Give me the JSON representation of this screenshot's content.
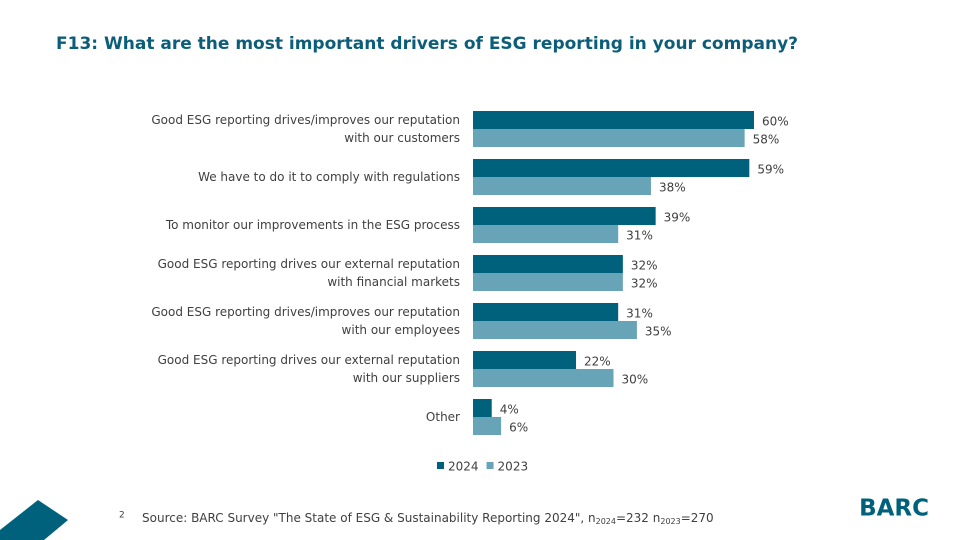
{
  "chart_data": {
    "type": "bar",
    "orientation": "horizontal",
    "title": "F13: What are the most important drivers of ESG reporting in your company?",
    "categories": [
      "Good ESG reporting drives/improves our reputation\nwith our customers",
      "We have to do it to comply with regulations",
      "To monitor our improvements in the ESG process",
      "Good ESG reporting drives our external reputation\nwith financial markets",
      "Good ESG reporting drives/improves our reputation\nwith our employees",
      "Good ESG reporting drives our external reputation\nwith our suppliers",
      "Other"
    ],
    "series": [
      {
        "name": "2024",
        "color": "#00617d",
        "values": [
          60,
          59,
          39,
          32,
          31,
          22,
          4
        ],
        "value_labels": [
          "60%",
          "59%",
          "39%",
          "32%",
          "31%",
          "22%",
          "4%"
        ]
      },
      {
        "name": "2023",
        "color": "#68a4b7",
        "values": [
          58,
          38,
          31,
          32,
          35,
          30,
          6
        ],
        "value_labels": [
          "58%",
          "38%",
          "31%",
          "32%",
          "35%",
          "30%",
          "6%"
        ]
      }
    ],
    "legend": "bottom",
    "page_number": "2",
    "source": [
      "Source: BARC Survey \"The State of ESG & Sustainability Reporting 2024\", n",
      "2024",
      "=232 n",
      "2023",
      "=270"
    ],
    "logo": "BARC"
  }
}
